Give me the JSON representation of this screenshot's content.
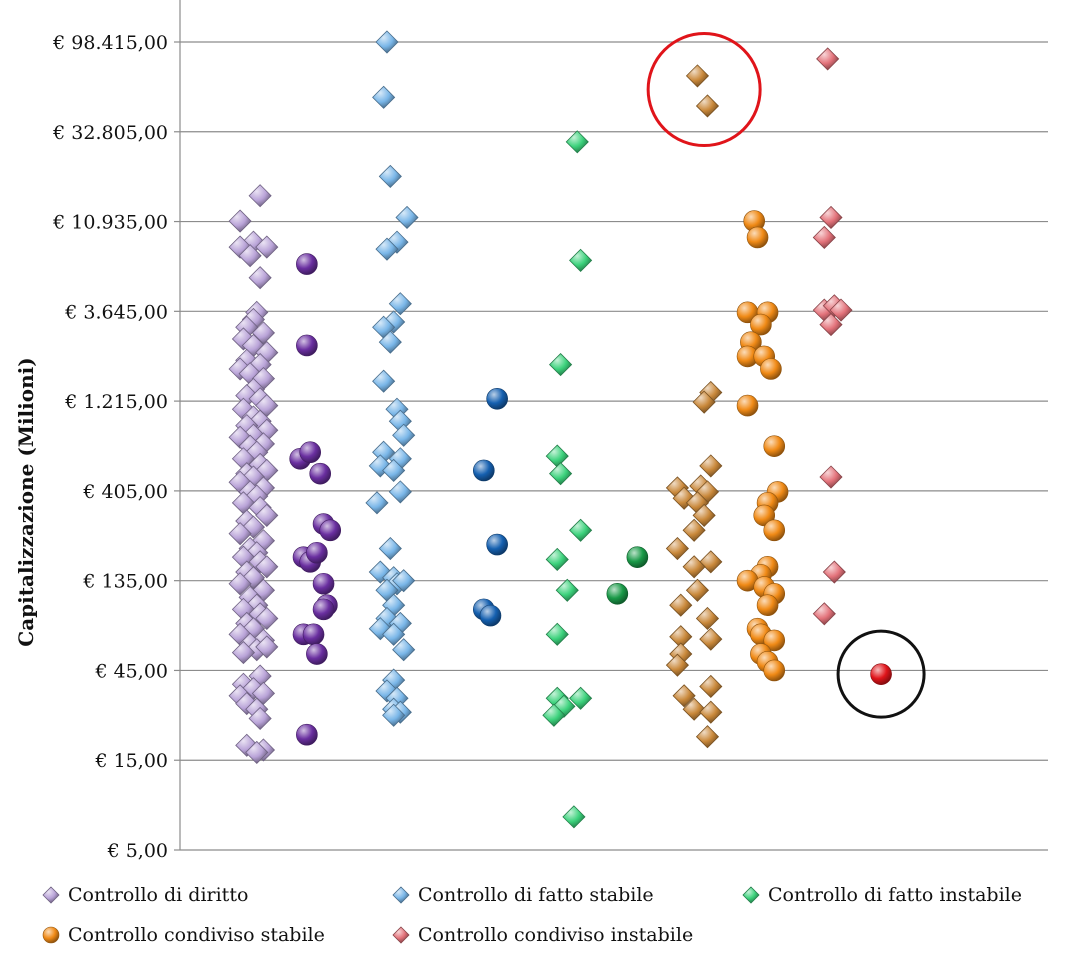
{
  "chart_data": {
    "type": "scatter",
    "ylabel": "Capitalizzazione  (Milioni)",
    "yscale": "log",
    "ylim": [
      5,
      98415
    ],
    "y_ticks": [
      "€ 98.415,00",
      "€ 32.805,00",
      "€ 10.935,00",
      "€ 3.645,00",
      "€ 1.215,00",
      "€ 405,00",
      "€ 135,00",
      "€ 45,00",
      "€ 15,00",
      "€ 5,00"
    ],
    "y_tick_values": [
      98415,
      32805,
      10935,
      3645,
      1215,
      405,
      135,
      45,
      15,
      5
    ],
    "xlim": [
      0,
      13
    ],
    "legend_position": "bottom",
    "series": [
      {
        "name": "Controllo di diritto",
        "marker": "diamond",
        "color": "#b9a3d8",
        "points": [
          [
            1.2,
            15000
          ],
          [
            0.9,
            11000
          ],
          [
            1.1,
            8500
          ],
          [
            1.3,
            8000
          ],
          [
            0.9,
            8000
          ],
          [
            1.05,
            7200
          ],
          [
            1.2,
            5500
          ],
          [
            1.15,
            3600
          ],
          [
            1.1,
            3300
          ],
          [
            1.0,
            3000
          ],
          [
            1.25,
            2800
          ],
          [
            0.95,
            2600
          ],
          [
            1.1,
            2400
          ],
          [
            1.3,
            2200
          ],
          [
            1.0,
            2000
          ],
          [
            1.2,
            1900
          ],
          [
            0.9,
            1800
          ],
          [
            1.05,
            1700
          ],
          [
            1.25,
            1600
          ],
          [
            1.1,
            1400
          ],
          [
            1.0,
            1300
          ],
          [
            1.2,
            1250
          ],
          [
            1.3,
            1150
          ],
          [
            0.95,
            1100
          ],
          [
            1.1,
            1000
          ],
          [
            1.2,
            950
          ],
          [
            1.0,
            900
          ],
          [
            1.3,
            850
          ],
          [
            1.1,
            800
          ],
          [
            0.9,
            780
          ],
          [
            1.25,
            720
          ],
          [
            1.05,
            700
          ],
          [
            1.15,
            650
          ],
          [
            0.95,
            600
          ],
          [
            1.2,
            560
          ],
          [
            1.3,
            520
          ],
          [
            1.0,
            500
          ],
          [
            1.1,
            480
          ],
          [
            0.9,
            450
          ],
          [
            1.25,
            420
          ],
          [
            1.05,
            400
          ],
          [
            1.15,
            380
          ],
          [
            0.95,
            350
          ],
          [
            1.2,
            330
          ],
          [
            1.3,
            300
          ],
          [
            1.0,
            280
          ],
          [
            1.1,
            260
          ],
          [
            0.9,
            240
          ],
          [
            1.25,
            220
          ],
          [
            1.05,
            200
          ],
          [
            1.15,
            190
          ],
          [
            0.95,
            180
          ],
          [
            1.2,
            170
          ],
          [
            1.3,
            160
          ],
          [
            1.0,
            150
          ],
          [
            1.1,
            140
          ],
          [
            0.9,
            130
          ],
          [
            1.25,
            120
          ],
          [
            1.05,
            110
          ],
          [
            1.15,
            100
          ],
          [
            0.95,
            95
          ],
          [
            1.2,
            90
          ],
          [
            1.3,
            85
          ],
          [
            1.0,
            80
          ],
          [
            1.1,
            75
          ],
          [
            0.9,
            70
          ],
          [
            1.25,
            65
          ],
          [
            1.05,
            62
          ],
          [
            1.15,
            58
          ],
          [
            0.95,
            56
          ],
          [
            1.3,
            60
          ],
          [
            1.2,
            42
          ],
          [
            0.95,
            38
          ],
          [
            1.1,
            36
          ],
          [
            1.25,
            34
          ],
          [
            0.9,
            33
          ],
          [
            1.0,
            30
          ],
          [
            1.15,
            28
          ],
          [
            1.2,
            25
          ],
          [
            1.0,
            18
          ],
          [
            1.25,
            17
          ],
          [
            1.15,
            16.5
          ]
        ]
      },
      {
        "name": "",
        "marker": "sphere",
        "color": "#6a2fa0",
        "points": [
          [
            1.9,
            6500
          ],
          [
            1.9,
            2400
          ],
          [
            1.8,
            600
          ],
          [
            1.95,
            650
          ],
          [
            2.1,
            500
          ],
          [
            2.15,
            270
          ],
          [
            2.25,
            250
          ],
          [
            1.85,
            180
          ],
          [
            1.95,
            170
          ],
          [
            2.05,
            190
          ],
          [
            2.15,
            130
          ],
          [
            2.2,
            100
          ],
          [
            2.15,
            95
          ],
          [
            1.85,
            70
          ],
          [
            2.0,
            70
          ],
          [
            2.05,
            55
          ],
          [
            1.9,
            20.5
          ]
        ]
      },
      {
        "name": "Controllo di fatto stabile",
        "marker": "diamond",
        "color": "#79b6e8",
        "points": [
          [
            3.1,
            98415
          ],
          [
            3.05,
            50000
          ],
          [
            3.15,
            19000
          ],
          [
            3.4,
            11500
          ],
          [
            3.25,
            8500
          ],
          [
            3.1,
            7800
          ],
          [
            3.3,
            4000
          ],
          [
            3.2,
            3200
          ],
          [
            3.05,
            3000
          ],
          [
            3.15,
            2500
          ],
          [
            3.05,
            1550
          ],
          [
            3.25,
            1100
          ],
          [
            3.3,
            950
          ],
          [
            3.35,
            800
          ],
          [
            3.05,
            650
          ],
          [
            3.3,
            600
          ],
          [
            3.0,
            550
          ],
          [
            3.2,
            520
          ],
          [
            3.3,
            400
          ],
          [
            2.95,
            350
          ],
          [
            3.15,
            200
          ],
          [
            3.0,
            150
          ],
          [
            3.2,
            140
          ],
          [
            3.25,
            130
          ],
          [
            3.35,
            135
          ],
          [
            3.1,
            120
          ],
          [
            3.2,
            100
          ],
          [
            3.1,
            85
          ],
          [
            3.3,
            80
          ],
          [
            3.0,
            75
          ],
          [
            3.2,
            70
          ],
          [
            3.35,
            58
          ],
          [
            3.2,
            40
          ],
          [
            3.1,
            35
          ],
          [
            3.25,
            32
          ],
          [
            3.2,
            28
          ],
          [
            3.3,
            27
          ],
          [
            3.2,
            26
          ]
        ]
      },
      {
        "name": "",
        "marker": "sphere",
        "color": "#1560b0",
        "points": [
          [
            4.75,
            1250
          ],
          [
            4.55,
            520
          ],
          [
            4.75,
            210
          ],
          [
            4.55,
            95
          ],
          [
            4.65,
            88
          ]
        ]
      },
      {
        "name": "Controllo di fatto instabile",
        "marker": "diamond",
        "color": "#3cd27c",
        "points": [
          [
            5.95,
            29000
          ],
          [
            6.0,
            6800
          ],
          [
            5.7,
            1900
          ],
          [
            5.65,
            620
          ],
          [
            5.7,
            500
          ],
          [
            6.0,
            250
          ],
          [
            5.65,
            175
          ],
          [
            5.8,
            120
          ],
          [
            6.0,
            32
          ],
          [
            5.65,
            70
          ],
          [
            5.65,
            32
          ],
          [
            5.75,
            29
          ],
          [
            5.6,
            26
          ],
          [
            5.9,
            7.5
          ]
        ]
      },
      {
        "name": "",
        "marker": "sphere",
        "color": "#1a9a48",
        "points": [
          [
            6.85,
            180
          ],
          [
            6.55,
            115
          ]
        ]
      },
      {
        "name": "",
        "marker": "diamond",
        "color": "#c9883a",
        "points": [
          [
            7.75,
            65000
          ],
          [
            7.9,
            45000
          ],
          [
            7.95,
            1350
          ],
          [
            7.85,
            1200
          ],
          [
            7.95,
            550
          ],
          [
            7.45,
            420
          ],
          [
            7.8,
            430
          ],
          [
            7.9,
            400
          ],
          [
            7.55,
            370
          ],
          [
            7.75,
            350
          ],
          [
            7.85,
            300
          ],
          [
            7.7,
            250
          ],
          [
            7.45,
            200
          ],
          [
            7.95,
            170
          ],
          [
            7.7,
            160
          ],
          [
            7.75,
            120
          ],
          [
            7.5,
            100
          ],
          [
            7.9,
            85
          ],
          [
            7.5,
            68
          ],
          [
            7.95,
            66
          ],
          [
            7.5,
            55
          ],
          [
            7.45,
            48
          ],
          [
            7.95,
            37
          ],
          [
            7.55,
            33
          ],
          [
            7.7,
            28
          ],
          [
            7.95,
            27
          ],
          [
            7.9,
            20
          ]
        ]
      },
      {
        "name": "Controllo condiviso stabile",
        "marker": "sphere",
        "color": "#f08a16",
        "points": [
          [
            8.6,
            11000
          ],
          [
            8.65,
            9000
          ],
          [
            8.5,
            3600
          ],
          [
            8.8,
            3600
          ],
          [
            8.7,
            3100
          ],
          [
            8.55,
            2500
          ],
          [
            8.5,
            2100
          ],
          [
            8.75,
            2100
          ],
          [
            8.85,
            1800
          ],
          [
            8.5,
            1150
          ],
          [
            8.9,
            700
          ],
          [
            8.95,
            400
          ],
          [
            8.8,
            350
          ],
          [
            8.75,
            300
          ],
          [
            8.9,
            250
          ],
          [
            8.8,
            160
          ],
          [
            8.7,
            145
          ],
          [
            8.5,
            135
          ],
          [
            8.75,
            125
          ],
          [
            8.9,
            115
          ],
          [
            8.8,
            100
          ],
          [
            8.65,
            75
          ],
          [
            8.7,
            70
          ],
          [
            8.9,
            65
          ],
          [
            8.7,
            55
          ],
          [
            8.8,
            50
          ],
          [
            8.9,
            45
          ]
        ]
      },
      {
        "name": "Controllo condiviso instabile",
        "marker": "diamond",
        "color": "#e3727a",
        "points": [
          [
            9.7,
            80000
          ],
          [
            9.75,
            11500
          ],
          [
            9.65,
            9000
          ],
          [
            9.65,
            3700
          ],
          [
            9.8,
            3900
          ],
          [
            9.9,
            3700
          ],
          [
            9.75,
            3100
          ],
          [
            9.75,
            480
          ],
          [
            9.8,
            150
          ],
          [
            9.65,
            90
          ]
        ]
      },
      {
        "name": "",
        "marker": "sphere",
        "color": "#e0141a",
        "points": [
          [
            10.5,
            43
          ]
        ]
      }
    ],
    "annotations": [
      {
        "shape": "circle",
        "color": "#e0141a",
        "x": 7.85,
        "y": 55000
      },
      {
        "shape": "circle",
        "color": "#111111",
        "x": 10.5,
        "y": 43
      }
    ]
  }
}
